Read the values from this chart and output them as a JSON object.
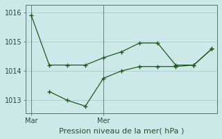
{
  "title": "",
  "xlabel": "Pression niveau de la mer( hPa )",
  "background_color": "#cce8e8",
  "grid_color": "#aacccc",
  "line_color": "#1a5c1a",
  "xtick_labels": [
    "Mar",
    "Mer"
  ],
  "xtick_positions": [
    0,
    4
  ],
  "ytick_labels": [
    "1013",
    "1014",
    "1015",
    "1016"
  ],
  "ytick_positions": [
    1013,
    1014,
    1015,
    1016
  ],
  "ylim": [
    1012.55,
    1016.25
  ],
  "xlim": [
    -0.3,
    10.3
  ],
  "series1_x": [
    0,
    1,
    2,
    3,
    4,
    5,
    6,
    7,
    8,
    9,
    10
  ],
  "series1_y": [
    1015.9,
    1014.2,
    1014.2,
    1014.2,
    1014.45,
    1014.65,
    1014.95,
    1014.95,
    1014.2,
    1014.2,
    1014.75
  ],
  "series2_x": [
    1,
    2,
    3,
    4,
    5,
    6,
    7,
    8,
    9,
    10
  ],
  "series2_y": [
    1013.3,
    1013.0,
    1012.8,
    1013.75,
    1014.0,
    1014.15,
    1014.15,
    1014.15,
    1014.2,
    1014.75
  ],
  "xlabel_fontsize": 8,
  "tick_fontsize": 7
}
